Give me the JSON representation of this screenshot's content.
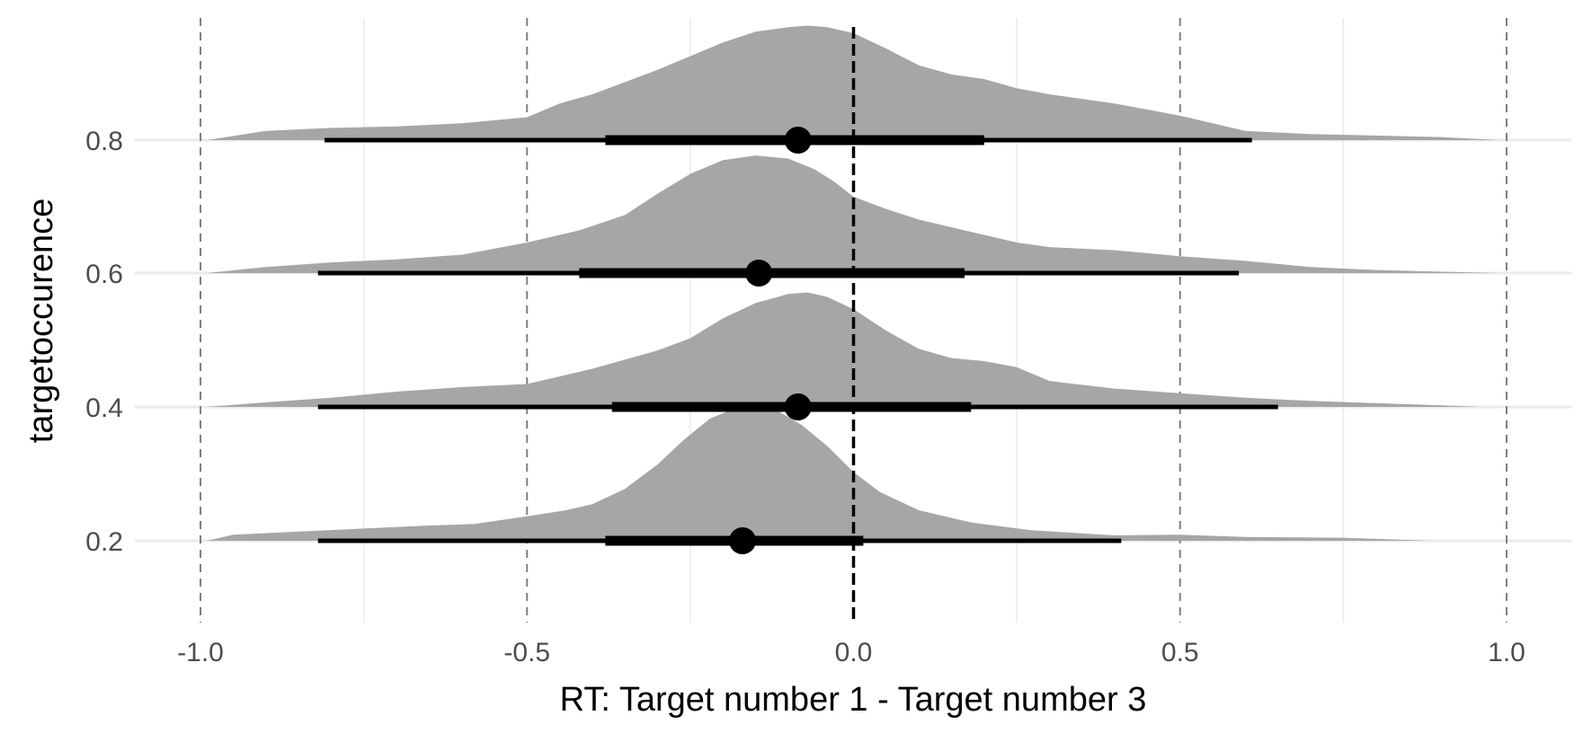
{
  "chart_data": {
    "type": "area",
    "subtype": "halfeye (density + interval + point)",
    "title": "",
    "xlabel": "RT: Target number 1 - Target number 3",
    "ylabel": "targetoccurence",
    "xlim": [
      -1.0,
      1.0
    ],
    "x_ticks": [
      -1.0,
      -0.5,
      0.0,
      0.5,
      1.0
    ],
    "x_tick_labels": [
      "-1.0",
      "-0.5",
      "0.0",
      "0.5",
      "1.0"
    ],
    "y_categories": [
      "0.2",
      "0.4",
      "0.6",
      "0.8"
    ],
    "grid": true,
    "reference_lines": {
      "dashed_grey_at": [
        -1.0,
        -0.5,
        0.5,
        1.0
      ],
      "dashed_black_at": [
        0.0
      ]
    },
    "colors": {
      "density_fill": "#a6a6a6",
      "interval": "#000000",
      "point": "#000000",
      "grid": "#ebebeb",
      "ref_dashed": "#7f7f7f"
    },
    "series": [
      {
        "category": "0.2",
        "point": -0.17,
        "interval_66": [
          -0.38,
          0.015
        ],
        "interval_95": [
          -0.82,
          0.41
        ],
        "density": [
          [
            -0.99,
            0.0
          ],
          [
            -0.95,
            0.04
          ],
          [
            -0.85,
            0.06
          ],
          [
            -0.75,
            0.08
          ],
          [
            -0.65,
            0.1
          ],
          [
            -0.58,
            0.11
          ],
          [
            -0.5,
            0.16
          ],
          [
            -0.44,
            0.2
          ],
          [
            -0.4,
            0.24
          ],
          [
            -0.35,
            0.34
          ],
          [
            -0.3,
            0.5
          ],
          [
            -0.26,
            0.66
          ],
          [
            -0.22,
            0.8
          ],
          [
            -0.18,
            0.87
          ],
          [
            -0.15,
            0.89
          ],
          [
            -0.12,
            0.86
          ],
          [
            -0.08,
            0.76
          ],
          [
            -0.04,
            0.62
          ],
          [
            0.0,
            0.45
          ],
          [
            0.04,
            0.32
          ],
          [
            0.1,
            0.2
          ],
          [
            0.18,
            0.12
          ],
          [
            0.27,
            0.07
          ],
          [
            0.4,
            0.035
          ],
          [
            0.5,
            0.04
          ],
          [
            0.6,
            0.025
          ],
          [
            0.75,
            0.02
          ],
          [
            0.88,
            0.0
          ]
        ]
      },
      {
        "category": "0.4",
        "point": -0.085,
        "interval_66": [
          -0.37,
          0.18
        ],
        "interval_95": [
          -0.82,
          0.65
        ],
        "density": [
          [
            -0.99,
            0.0
          ],
          [
            -0.9,
            0.03
          ],
          [
            -0.8,
            0.06
          ],
          [
            -0.7,
            0.1
          ],
          [
            -0.6,
            0.13
          ],
          [
            -0.5,
            0.15
          ],
          [
            -0.4,
            0.25
          ],
          [
            -0.3,
            0.37
          ],
          [
            -0.25,
            0.45
          ],
          [
            -0.2,
            0.58
          ],
          [
            -0.15,
            0.68
          ],
          [
            -0.1,
            0.74
          ],
          [
            -0.07,
            0.75
          ],
          [
            -0.04,
            0.72
          ],
          [
            0.0,
            0.64
          ],
          [
            0.05,
            0.5
          ],
          [
            0.1,
            0.38
          ],
          [
            0.15,
            0.32
          ],
          [
            0.2,
            0.3
          ],
          [
            0.25,
            0.26
          ],
          [
            0.3,
            0.17
          ],
          [
            0.4,
            0.12
          ],
          [
            0.5,
            0.09
          ],
          [
            0.6,
            0.06
          ],
          [
            0.7,
            0.04
          ],
          [
            0.8,
            0.025
          ],
          [
            0.9,
            0.01
          ],
          [
            0.96,
            0.0
          ]
        ]
      },
      {
        "category": "0.6",
        "point": -0.145,
        "interval_66": [
          -0.42,
          0.17
        ],
        "interval_95": [
          -0.82,
          0.59
        ],
        "density": [
          [
            -0.99,
            0.0
          ],
          [
            -0.9,
            0.04
          ],
          [
            -0.8,
            0.07
          ],
          [
            -0.7,
            0.09
          ],
          [
            -0.6,
            0.12
          ],
          [
            -0.5,
            0.2
          ],
          [
            -0.42,
            0.28
          ],
          [
            -0.35,
            0.38
          ],
          [
            -0.3,
            0.52
          ],
          [
            -0.25,
            0.65
          ],
          [
            -0.2,
            0.74
          ],
          [
            -0.15,
            0.77
          ],
          [
            -0.1,
            0.75
          ],
          [
            -0.06,
            0.68
          ],
          [
            -0.03,
            0.6
          ],
          [
            0.0,
            0.5
          ],
          [
            0.05,
            0.42
          ],
          [
            0.1,
            0.35
          ],
          [
            0.15,
            0.3
          ],
          [
            0.2,
            0.25
          ],
          [
            0.25,
            0.2
          ],
          [
            0.3,
            0.17
          ],
          [
            0.4,
            0.15
          ],
          [
            0.5,
            0.11
          ],
          [
            0.6,
            0.08
          ],
          [
            0.7,
            0.04
          ],
          [
            0.8,
            0.02
          ],
          [
            0.99,
            0.0
          ]
        ]
      },
      {
        "category": "0.8",
        "point": -0.085,
        "interval_66": [
          -0.38,
          0.2
        ],
        "interval_95": [
          -0.81,
          0.61
        ],
        "density": [
          [
            -0.99,
            0.0
          ],
          [
            -0.9,
            0.06
          ],
          [
            -0.8,
            0.08
          ],
          [
            -0.7,
            0.09
          ],
          [
            -0.6,
            0.11
          ],
          [
            -0.5,
            0.15
          ],
          [
            -0.45,
            0.24
          ],
          [
            -0.4,
            0.3
          ],
          [
            -0.35,
            0.38
          ],
          [
            -0.3,
            0.46
          ],
          [
            -0.25,
            0.55
          ],
          [
            -0.2,
            0.64
          ],
          [
            -0.15,
            0.71
          ],
          [
            -0.1,
            0.74
          ],
          [
            -0.07,
            0.75
          ],
          [
            -0.04,
            0.74
          ],
          [
            0.0,
            0.7
          ],
          [
            0.05,
            0.6
          ],
          [
            0.1,
            0.49
          ],
          [
            0.15,
            0.43
          ],
          [
            0.2,
            0.4
          ],
          [
            0.25,
            0.34
          ],
          [
            0.3,
            0.3
          ],
          [
            0.4,
            0.24
          ],
          [
            0.5,
            0.16
          ],
          [
            0.6,
            0.06
          ],
          [
            0.7,
            0.04
          ],
          [
            0.8,
            0.03
          ],
          [
            0.9,
            0.02
          ],
          [
            0.99,
            0.0
          ]
        ]
      }
    ]
  }
}
